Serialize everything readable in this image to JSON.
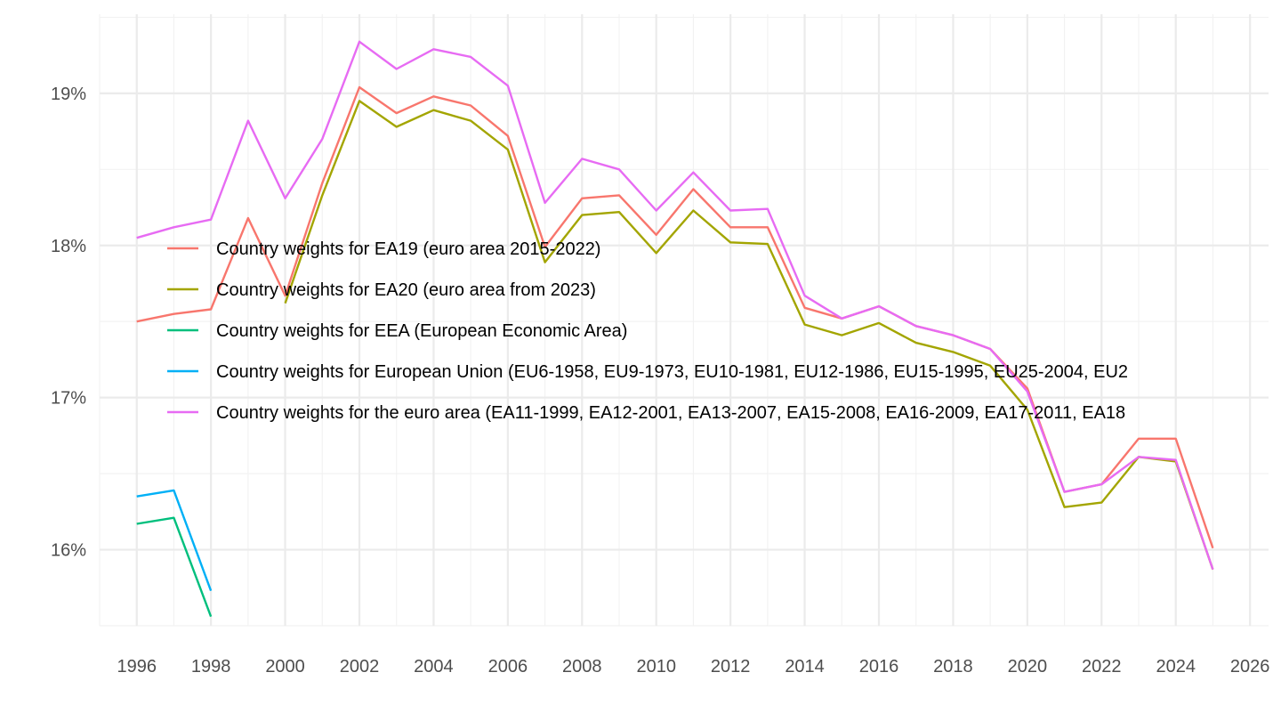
{
  "chart_data": {
    "type": "line",
    "title": "",
    "xlabel": "",
    "ylabel": "",
    "xlim": [
      1995,
      2026.5
    ],
    "ylim": [
      15.5,
      19.52
    ],
    "x_ticks": [
      "1996",
      "1998",
      "2000",
      "2002",
      "2004",
      "2006",
      "2008",
      "2010",
      "2012",
      "2014",
      "2016",
      "2018",
      "2020",
      "2022",
      "2024",
      "2026"
    ],
    "y_ticks": [
      "16%",
      "17%",
      "18%",
      "19%"
    ],
    "grid": true,
    "legend_position": "inside-left",
    "series": [
      {
        "name": "Country weights for EA19 (euro area 2015-2022)",
        "color": "#F8766D",
        "points": [
          [
            1996,
            17.5
          ],
          [
            1997,
            17.55
          ],
          [
            1998,
            17.58
          ],
          [
            1999,
            18.18
          ],
          [
            2000,
            17.67
          ],
          [
            2001,
            18.41
          ],
          [
            2002,
            19.04
          ],
          [
            2003,
            18.87
          ],
          [
            2004,
            18.98
          ],
          [
            2005,
            18.92
          ],
          [
            2006,
            18.72
          ],
          [
            2007,
            17.99
          ],
          [
            2008,
            18.31
          ],
          [
            2009,
            18.33
          ],
          [
            2010,
            18.07
          ],
          [
            2011,
            18.37
          ],
          [
            2012,
            18.12
          ],
          [
            2013,
            18.12
          ],
          [
            2014,
            17.59
          ],
          [
            2015,
            17.52
          ],
          [
            2016,
            17.6
          ],
          [
            2017,
            17.47
          ],
          [
            2018,
            17.41
          ],
          [
            2019,
            17.32
          ],
          [
            2020,
            17.06
          ],
          [
            2021,
            16.38
          ],
          [
            2022,
            16.43
          ],
          [
            2023,
            16.73
          ],
          [
            2024,
            16.73
          ],
          [
            2025,
            16.01
          ]
        ]
      },
      {
        "name": "Country weights for EA20 (euro area from 2023)",
        "color": "#A3A500",
        "points": [
          [
            2000,
            17.62
          ],
          [
            2001,
            18.33
          ],
          [
            2002,
            18.95
          ],
          [
            2003,
            18.78
          ],
          [
            2004,
            18.89
          ],
          [
            2005,
            18.82
          ],
          [
            2006,
            18.63
          ],
          [
            2007,
            17.89
          ],
          [
            2008,
            18.2
          ],
          [
            2009,
            18.22
          ],
          [
            2010,
            17.95
          ],
          [
            2011,
            18.23
          ],
          [
            2012,
            18.02
          ],
          [
            2013,
            18.01
          ],
          [
            2014,
            17.48
          ],
          [
            2015,
            17.41
          ],
          [
            2016,
            17.49
          ],
          [
            2017,
            17.36
          ],
          [
            2018,
            17.3
          ],
          [
            2019,
            17.21
          ],
          [
            2020,
            16.92
          ],
          [
            2021,
            16.28
          ],
          [
            2022,
            16.31
          ],
          [
            2023,
            16.61
          ],
          [
            2024,
            16.58
          ],
          [
            2025,
            15.87
          ]
        ]
      },
      {
        "name": "Country weights for EEA (European Economic Area)",
        "color": "#00BF7D",
        "points": [
          [
            1996,
            16.17
          ],
          [
            1997,
            16.21
          ],
          [
            1998,
            15.56
          ]
        ]
      },
      {
        "name": "Country weights for European Union (EU6-1958, EU9-1973, EU10-1981, EU12-1986, EU15-1995, EU25-2004, EU2",
        "color": "#00B0F6",
        "points": [
          [
            1996,
            16.35
          ],
          [
            1997,
            16.39
          ],
          [
            1998,
            15.73
          ]
        ]
      },
      {
        "name": "Country weights for the euro area (EA11-1999, EA12-2001, EA13-2007, EA15-2008, EA16-2009, EA17-2011, EA18",
        "color": "#E76BF3",
        "points": [
          [
            1996,
            18.05
          ],
          [
            1997,
            18.12
          ],
          [
            1998,
            18.17
          ],
          [
            1999,
            18.82
          ],
          [
            2000,
            18.31
          ],
          [
            2001,
            18.7
          ],
          [
            2002,
            19.34
          ],
          [
            2003,
            19.16
          ],
          [
            2004,
            19.29
          ],
          [
            2005,
            19.24
          ],
          [
            2006,
            19.05
          ],
          [
            2007,
            18.28
          ],
          [
            2008,
            18.57
          ],
          [
            2009,
            18.5
          ],
          [
            2010,
            18.23
          ],
          [
            2011,
            18.48
          ],
          [
            2012,
            18.23
          ],
          [
            2013,
            18.24
          ],
          [
            2014,
            17.67
          ],
          [
            2015,
            17.52
          ],
          [
            2016,
            17.6
          ],
          [
            2017,
            17.47
          ],
          [
            2018,
            17.41
          ],
          [
            2019,
            17.32
          ],
          [
            2020,
            17.04
          ],
          [
            2021,
            16.38
          ],
          [
            2022,
            16.43
          ],
          [
            2023,
            16.61
          ],
          [
            2024,
            16.59
          ],
          [
            2025,
            15.87
          ]
        ]
      }
    ]
  }
}
